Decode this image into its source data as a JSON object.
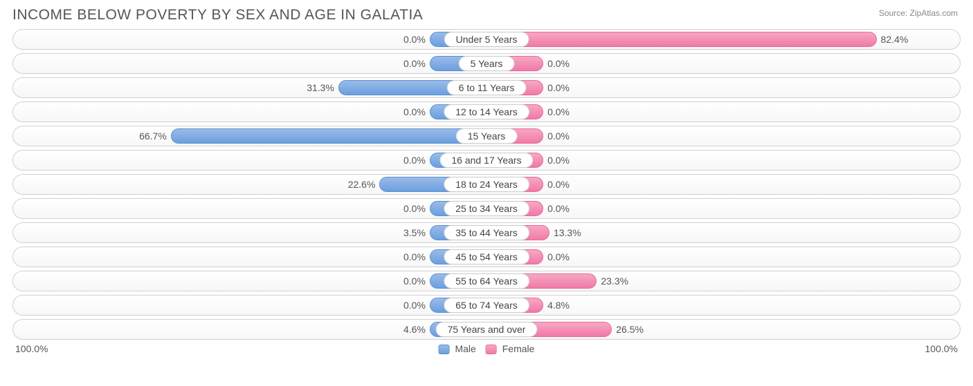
{
  "title": "INCOME BELOW POVERTY BY SEX AND AGE IN GALATIA",
  "source": "Source: ZipAtlas.com",
  "chart": {
    "type": "diverging-bar",
    "axis_max": 100.0,
    "axis_label_left": "100.0%",
    "axis_label_right": "100.0%",
    "min_bar_pct": 12,
    "male_color": "#6a9fe0",
    "male_color_light": "#9bbce8",
    "male_border": "#5a8fd0",
    "female_color": "#f179a8",
    "female_color_light": "#f7a8c4",
    "female_border": "#e7699a",
    "track_border": "#d0d0d0",
    "text_color": "#555555",
    "label_fontsize": 14,
    "title_fontsize": 21,
    "rows": [
      {
        "label": "Under 5 Years",
        "male": 0.0,
        "female": 82.4
      },
      {
        "label": "5 Years",
        "male": 0.0,
        "female": 0.0
      },
      {
        "label": "6 to 11 Years",
        "male": 31.3,
        "female": 0.0
      },
      {
        "label": "12 to 14 Years",
        "male": 0.0,
        "female": 0.0
      },
      {
        "label": "15 Years",
        "male": 66.7,
        "female": 0.0
      },
      {
        "label": "16 and 17 Years",
        "male": 0.0,
        "female": 0.0
      },
      {
        "label": "18 to 24 Years",
        "male": 22.6,
        "female": 0.0
      },
      {
        "label": "25 to 34 Years",
        "male": 0.0,
        "female": 0.0
      },
      {
        "label": "35 to 44 Years",
        "male": 3.5,
        "female": 13.3
      },
      {
        "label": "45 to 54 Years",
        "male": 0.0,
        "female": 0.0
      },
      {
        "label": "55 to 64 Years",
        "male": 0.0,
        "female": 23.3
      },
      {
        "label": "65 to 74 Years",
        "male": 0.0,
        "female": 4.8
      },
      {
        "label": "75 Years and over",
        "male": 4.6,
        "female": 26.5
      }
    ]
  },
  "legend": {
    "male": "Male",
    "female": "Female"
  }
}
